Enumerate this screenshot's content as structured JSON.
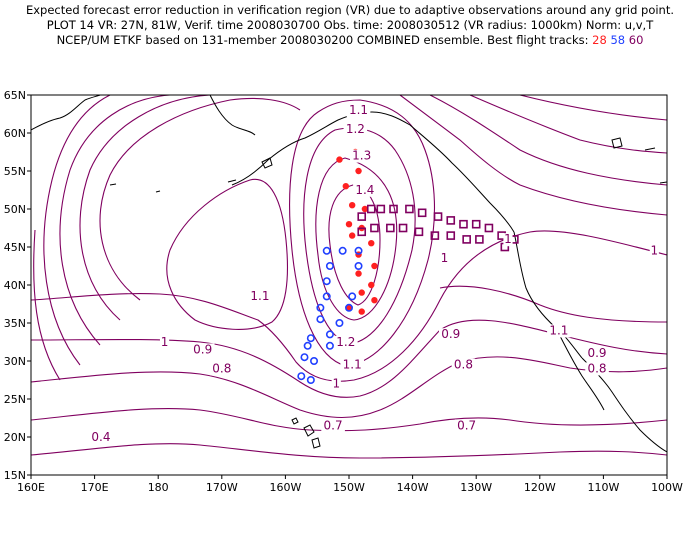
{
  "title": {
    "line1": "Expected forecast error reduction in verification region (VR) due to adaptive observations around any grid point.",
    "line2": "PLOT 14 VR: 27N, 81W, Verif. time 2008030700 Obs. time: 2008030512 (VR radius: 1000km) Norm: u,v,T",
    "line3_prefix": "NCEP/UM ETKF based on 131-member 2008030200 COMBINED ensemble.  Best flight tracks:",
    "track_28": "28",
    "track_58": "58",
    "track_60": "60"
  },
  "axes": {
    "lat_ticks": [
      "65N",
      "60N",
      "55N",
      "50N",
      "45N",
      "40N",
      "35N",
      "30N",
      "25N",
      "20N",
      "15N"
    ],
    "lon_ticks": [
      "160E",
      "170E",
      "180",
      "170W",
      "160W",
      "150W",
      "140W",
      "130W",
      "120W",
      "110W",
      "100W"
    ]
  },
  "colors": {
    "contour": "#800060",
    "track_28": "#ff2020",
    "track_58": "#2040ff",
    "track_60": "#800060",
    "coast": "#000000"
  },
  "contour_labels": [
    {
      "text": "1.1",
      "lon": -148.5,
      "lat": 62.5
    },
    {
      "text": "1.2",
      "lon": -149.0,
      "lat": 60.0
    },
    {
      "text": "1.3",
      "lon": -148.0,
      "lat": 56.5
    },
    {
      "text": "1.4",
      "lon": -147.5,
      "lat": 52.0
    },
    {
      "text": "1",
      "lon": -125.0,
      "lat": 45.5
    },
    {
      "text": "1",
      "lon": -102.0,
      "lat": 44.0
    },
    {
      "text": "1",
      "lon": -135.0,
      "lat": 43.0
    },
    {
      "text": "1.1",
      "lon": -164.0,
      "lat": 38.0
    },
    {
      "text": "1.1",
      "lon": -117.0,
      "lat": 33.5
    },
    {
      "text": "1",
      "lon": -179.0,
      "lat": 32.0
    },
    {
      "text": "0.9",
      "lon": -173.0,
      "lat": 31.0
    },
    {
      "text": "0.9",
      "lon": -134.0,
      "lat": 33.0
    },
    {
      "text": "0.9",
      "lon": -111.0,
      "lat": 30.5
    },
    {
      "text": "0.8",
      "lon": -170.0,
      "lat": 28.5
    },
    {
      "text": "0.8",
      "lon": -132.0,
      "lat": 29.0
    },
    {
      "text": "0.8",
      "lon": -111.0,
      "lat": 28.5
    },
    {
      "text": "1.2",
      "lon": -150.5,
      "lat": 32.0
    },
    {
      "text": "1.1",
      "lon": -149.5,
      "lat": 29.0
    },
    {
      "text": "1",
      "lon": -152.0,
      "lat": 26.5
    },
    {
      "text": "0.7",
      "lon": -152.5,
      "lat": 21.0
    },
    {
      "text": "0.7",
      "lon": -131.5,
      "lat": 21.0
    },
    {
      "text": "0.4",
      "lon": -189.0,
      "lat": 19.5
    }
  ],
  "flight_tracks": [
    {
      "id": "28",
      "marker": "filled-dot",
      "points": [
        [
          -149.0,
          57.5
        ],
        [
          -151.5,
          56.5
        ],
        [
          -148.5,
          55.0
        ],
        [
          -150.5,
          53.0
        ],
        [
          -148.0,
          52.5
        ],
        [
          -149.5,
          50.5
        ],
        [
          -147.5,
          50.0
        ],
        [
          -150.0,
          48.0
        ],
        [
          -148.0,
          47.5
        ],
        [
          -149.5,
          46.5
        ],
        [
          -146.5,
          45.5
        ],
        [
          -148.5,
          44.0
        ],
        [
          -146.0,
          42.5
        ],
        [
          -148.5,
          41.5
        ],
        [
          -146.5,
          40.0
        ],
        [
          -148.0,
          39.0
        ],
        [
          -146.0,
          38.0
        ],
        [
          -148.0,
          36.5
        ],
        [
          -150.0,
          37.0
        ]
      ]
    },
    {
      "id": "58",
      "marker": "open-circle",
      "points": [
        [
          -153.5,
          44.5
        ],
        [
          -151.0,
          44.5
        ],
        [
          -148.5,
          44.5
        ],
        [
          -153.0,
          42.5
        ],
        [
          -148.5,
          42.5
        ],
        [
          -153.5,
          40.5
        ],
        [
          -153.5,
          38.5
        ],
        [
          -149.5,
          38.5
        ],
        [
          -154.5,
          37.0
        ],
        [
          -150.0,
          37.0
        ],
        [
          -154.5,
          35.5
        ],
        [
          -151.5,
          35.0
        ],
        [
          -153.0,
          33.5
        ],
        [
          -156.0,
          33.0
        ],
        [
          -153.0,
          32.0
        ],
        [
          -156.5,
          32.0
        ],
        [
          -157.0,
          30.5
        ],
        [
          -155.5,
          30.0
        ],
        [
          -157.5,
          28.0
        ],
        [
          -156.0,
          27.5
        ]
      ]
    },
    {
      "id": "60",
      "marker": "open-square",
      "points": [
        [
          -148.0,
          49.0
        ],
        [
          -146.5,
          50.0
        ],
        [
          -145.0,
          50.0
        ],
        [
          -143.0,
          50.0
        ],
        [
          -140.5,
          50.0
        ],
        [
          -138.5,
          49.5
        ],
        [
          -136.0,
          49.0
        ],
        [
          -134.0,
          48.5
        ],
        [
          -132.0,
          48.0
        ],
        [
          -130.0,
          48.0
        ],
        [
          -128.0,
          47.5
        ],
        [
          -126.0,
          46.5
        ],
        [
          -124.0,
          46.0
        ],
        [
          -125.5,
          45.0
        ],
        [
          -129.5,
          46.0
        ],
        [
          -131.5,
          46.0
        ],
        [
          -134.0,
          46.5
        ],
        [
          -136.5,
          46.5
        ],
        [
          -139.0,
          47.0
        ],
        [
          -141.5,
          47.5
        ],
        [
          -143.5,
          47.5
        ],
        [
          -146.0,
          47.5
        ],
        [
          -148.0,
          47.0
        ]
      ]
    }
  ]
}
